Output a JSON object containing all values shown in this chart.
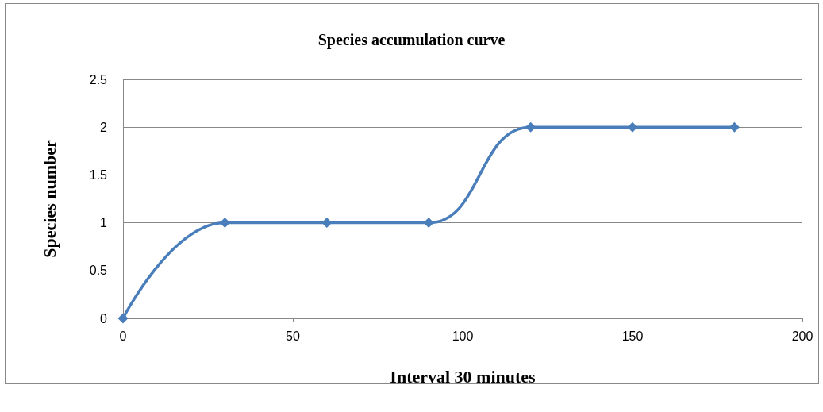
{
  "chart_data": {
    "type": "line",
    "title": "Species accumulation curve",
    "xlabel": "Interval 30 minutes",
    "ylabel": "Species number",
    "x": [
      0,
      30,
      60,
      90,
      120,
      150,
      180
    ],
    "series": [
      {
        "color": "#4a7ebb",
        "values": [
          0,
          1,
          1,
          1,
          2,
          2,
          2
        ]
      }
    ],
    "xlim": [
      0,
      200
    ],
    "xticks": [
      0,
      50,
      100,
      150,
      200
    ],
    "ylim": [
      0,
      2.5
    ],
    "yticks": [
      0,
      0.5,
      1,
      1.5,
      2,
      2.5
    ],
    "grid": "y",
    "marker": "diamond",
    "line_style": "solid"
  }
}
